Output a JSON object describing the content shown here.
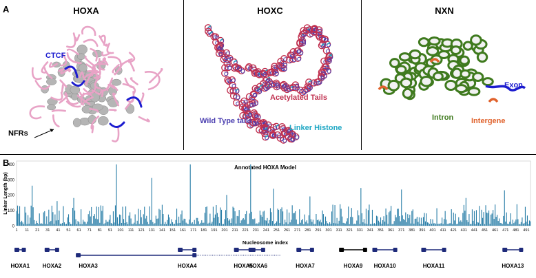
{
  "panel_a": {
    "letter": "A",
    "hoxa": {
      "title": "HOXA",
      "ctcf_label": "CTCF",
      "nfrs_label": "NFRs"
    },
    "hoxc": {
      "title": "HOXC",
      "acetylated_label": "Acetylated Tails",
      "wildtype_label": "Wild Type tails",
      "linker_label": "Linker Histone"
    },
    "nxn": {
      "title": "NXN",
      "exon_label": "Exon",
      "intron_label": "Intron",
      "intergene_label": "Intergene"
    }
  },
  "panel_b": {
    "letter": "B"
  },
  "colors": {
    "fiber_pink": "#e8a3c6",
    "nucleosome_gray": "#b5b5b5",
    "ctcf_blue": "#1c1ccf",
    "hoxc_red": "#c0304f",
    "hoxc_purple": "#4b3fb0",
    "linker_cyan": "#1fa7c4",
    "nxn_green": "#3f7a1e",
    "intergene_orange": "#e0622c",
    "bar_blue": "#2b7fa8",
    "gene_navy": "#1e2a7a"
  },
  "chart_data": {
    "type": "bar",
    "title": "Annotated HOXA Model",
    "xlabel": "Nucleosome index",
    "ylabel": "Linker Length (bp)",
    "ylim": [
      0,
      420
    ],
    "yticks": [
      0,
      100,
      200,
      300,
      400
    ],
    "xticks": [
      1,
      11,
      21,
      31,
      41,
      51,
      61,
      71,
      81,
      91,
      101,
      111,
      121,
      131,
      141,
      151,
      161,
      171,
      181,
      191,
      201,
      211,
      221,
      231,
      241,
      251,
      261,
      271,
      281,
      291,
      301,
      311,
      321,
      331,
      341,
      351,
      361,
      371,
      381,
      391,
      401,
      411,
      421,
      431,
      441,
      451,
      461,
      471,
      481,
      491
    ],
    "n_nucleosomes": 495,
    "peaks": [
      {
        "x": 16,
        "y": 260
      },
      {
        "x": 97,
        "y": 398
      },
      {
        "x": 131,
        "y": 310
      },
      {
        "x": 168,
        "y": 398
      },
      {
        "x": 226,
        "y": 398
      },
      {
        "x": 248,
        "y": 240
      },
      {
        "x": 332,
        "y": 245
      },
      {
        "x": 371,
        "y": 235
      },
      {
        "x": 470,
        "y": 230
      },
      {
        "x": 40,
        "y": 160
      },
      {
        "x": 56,
        "y": 180
      },
      {
        "x": 203,
        "y": 200
      },
      {
        "x": 283,
        "y": 190
      },
      {
        "x": 433,
        "y": 180
      }
    ],
    "genes": [
      {
        "name": "HOXA1",
        "start": 1,
        "end": 8,
        "color": "#1e2a7a"
      },
      {
        "name": "HOXA2",
        "start": 30,
        "end": 40,
        "color": "#1e2a7a"
      },
      {
        "name": "HOXA3",
        "start": 60,
        "end": 172,
        "color": "#1e2a7a"
      },
      {
        "name": "HOXA4",
        "start": 158,
        "end": 172,
        "color": "#1e2a7a"
      },
      {
        "name": "HOXA5",
        "start": 212,
        "end": 226,
        "color": "#1e2a7a"
      },
      {
        "name": "HOXA6",
        "start": 228,
        "end": 238,
        "color": "#1e2a7a"
      },
      {
        "name": "HOXA7",
        "start": 272,
        "end": 285,
        "color": "#1e2a7a"
      },
      {
        "name": "HOXA9",
        "start": 313,
        "end": 336,
        "color": "#000000"
      },
      {
        "name": "HOXA10",
        "start": 345,
        "end": 365,
        "color": "#1e2a7a"
      },
      {
        "name": "HOXA11",
        "start": 392,
        "end": 412,
        "color": "#1e2a7a"
      },
      {
        "name": "HOXA13",
        "start": 470,
        "end": 486,
        "color": "#1e2a7a"
      }
    ],
    "hoxa3_dotted_end": 255
  }
}
